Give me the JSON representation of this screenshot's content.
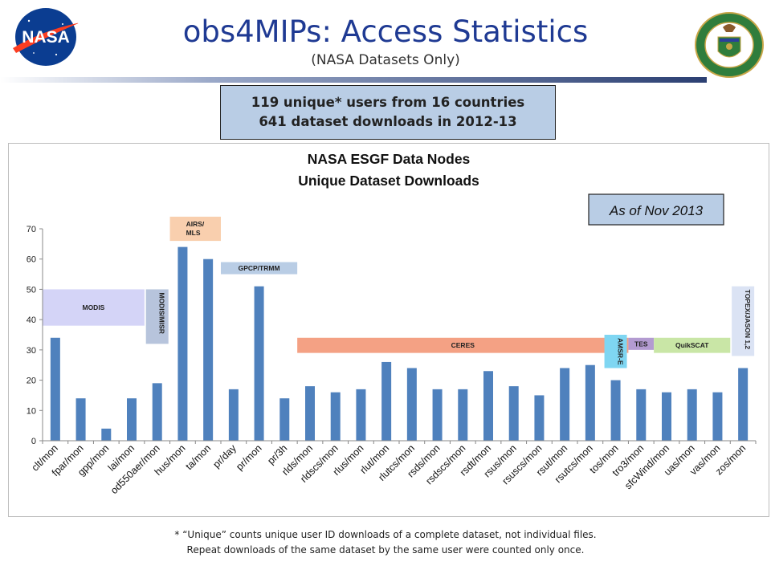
{
  "header": {
    "title": "obs4MIPs: Access Statistics",
    "subtitle": "(NASA Datasets Only)",
    "nasa_logo_text": "NASA",
    "doe_logo_text": "DEPARTMENT OF ENERGY · UNITED STATES OF AMERICA"
  },
  "summary": {
    "line1": "119 unique* users from 16 countries",
    "line2": "641 dataset downloads in 2012-13"
  },
  "footnote": {
    "line1": "* “Unique” counts unique user ID downloads of a complete dataset, not individual files.",
    "line2": "Repeat downloads of the same dataset by the same user were counted only once."
  },
  "colors": {
    "bar": "#4f81bd",
    "title_blue": "#1f3a93",
    "summary_bg": "#b9cde5"
  },
  "chart_data": {
    "type": "bar",
    "title": "NASA ESGF Data Nodes",
    "subtitle": "Unique Dataset Downloads",
    "as_of": "As of Nov 2013",
    "ylim": [
      0,
      70
    ],
    "yticks": [
      0,
      10,
      20,
      30,
      40,
      50,
      60,
      70
    ],
    "grid": false,
    "categories": [
      "clt/mon",
      "fpar/mon",
      "gpp/mon",
      "lai/mon",
      "od550aer/mon",
      "hus/mon",
      "ta/mon",
      "pr/day",
      "pr/mon",
      "pr/3h",
      "rlds/mon",
      "rldscs/mon",
      "rlus/mon",
      "rlut/mon",
      "rlutcs/mon",
      "rsds/mon",
      "rsdscs/mon",
      "rsdt/mon",
      "rsus/mon",
      "rsuscs/mon",
      "rsut/mon",
      "rsutcs/mon",
      "tos/mon",
      "tro3/mon",
      "sfcWind/mon",
      "uas/mon",
      "vas/mon",
      "zos/mon"
    ],
    "values": [
      34,
      14,
      4,
      14,
      19,
      64,
      60,
      17,
      51,
      14,
      18,
      16,
      17,
      26,
      24,
      17,
      17,
      23,
      18,
      15,
      24,
      25,
      20,
      17,
      16,
      17,
      16,
      24
    ],
    "annotations": [
      {
        "label": "MODIS",
        "from": 0,
        "to": 3,
        "y0": 38,
        "y1": 50,
        "color": "#d4d4f7",
        "orientation": "horizontal"
      },
      {
        "label": "MODIS/MISR",
        "from": 4,
        "to": 4,
        "y0": 32,
        "y1": 50,
        "color": "#b7c4dc",
        "orientation": "vertical"
      },
      {
        "label": "AIRS/ MLS",
        "from": 5,
        "to": 6,
        "y0": 66,
        "y1": 74,
        "color": "#f9cfae",
        "orientation": "horizontal"
      },
      {
        "label": "GPCP/TRMM",
        "from": 7,
        "to": 9,
        "y0": 55,
        "y1": 59,
        "color": "#b9cde5",
        "orientation": "horizontal"
      },
      {
        "label": "CERES",
        "from": 10,
        "to": 22,
        "y0": 29,
        "y1": 34,
        "color": "#f4a184",
        "orientation": "horizontal"
      },
      {
        "label": "AMSR-E",
        "from": 22,
        "to": 22,
        "y0": 24,
        "y1": 35,
        "color": "#7fd6f2",
        "orientation": "vertical"
      },
      {
        "label": "TES",
        "from": 23,
        "to": 23,
        "y0": 30,
        "y1": 34,
        "color": "#b39bd1",
        "orientation": "horizontal"
      },
      {
        "label": "QuikSCAT",
        "from": 24,
        "to": 26,
        "y0": 29,
        "y1": 34,
        "color": "#c9e6a6",
        "orientation": "horizontal"
      },
      {
        "label": "TOPEX/JASON 1,2",
        "from": 27,
        "to": 27,
        "y0": 28,
        "y1": 51,
        "color": "#dbe3f4",
        "orientation": "vertical"
      }
    ]
  }
}
